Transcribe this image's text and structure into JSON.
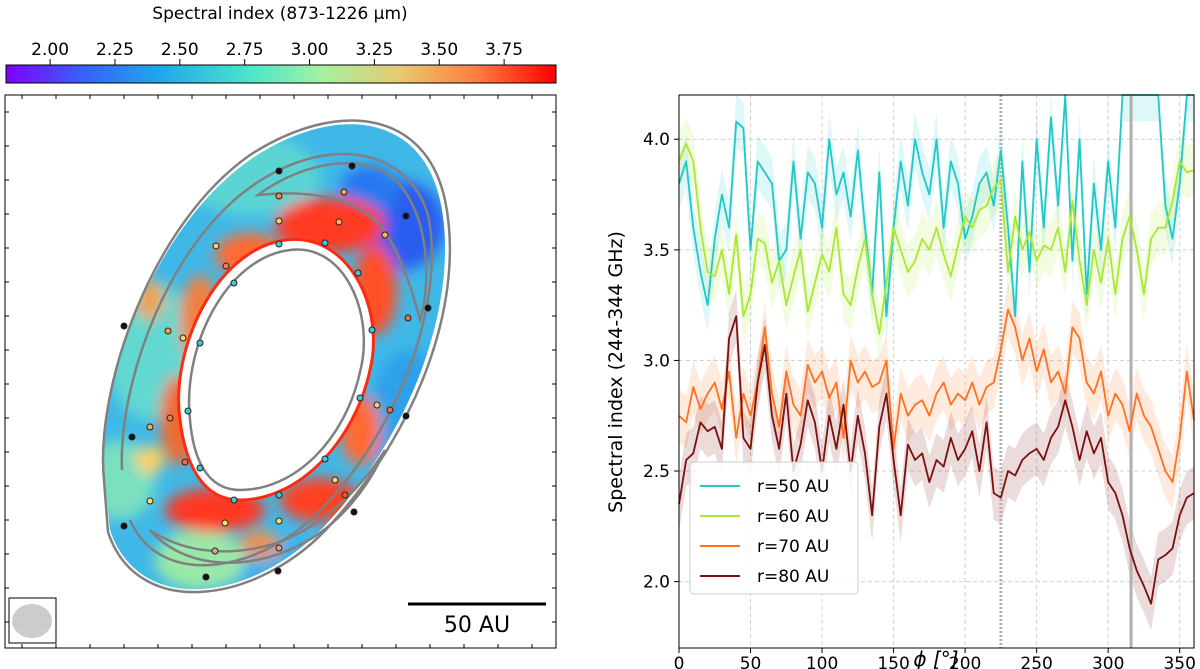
{
  "colorbar": {
    "title": "Spectral index (873-1226 μm)",
    "range": [
      1.83,
      3.95
    ],
    "tick_values": [
      2.0,
      2.25,
      2.5,
      2.75,
      3.0,
      3.25,
      3.5,
      3.75
    ],
    "tick_labels": [
      "2.00",
      "2.25",
      "2.50",
      "2.75",
      "3.00",
      "3.25",
      "3.50",
      "3.75"
    ],
    "colormap": "rainbow"
  },
  "map": {
    "scale_bar_label": "50 AU",
    "contour_color": "#808080",
    "beam_color": "#cccccc"
  },
  "chart_data": {
    "type": "line",
    "xlabel": "ϕ [°]",
    "ylabel": "Spectral index (244-344 GHz)",
    "xlim": [
      0,
      360
    ],
    "ylim": [
      1.7,
      4.2
    ],
    "x_ticks": [
      0,
      50,
      100,
      150,
      200,
      250,
      300,
      350
    ],
    "y_ticks": [
      2.0,
      2.5,
      3.0,
      3.5,
      4.0
    ],
    "y_tick_labels": [
      "2.0",
      "2.5",
      "3.0",
      "3.5",
      "4.0"
    ],
    "grid": true,
    "legend_position": "lower-left",
    "vertical_lines": [
      {
        "x": 225,
        "style": "dotted",
        "color": "#b0b0b0"
      },
      {
        "x": 316,
        "style": "solid",
        "color": "#b0b0b0"
      }
    ],
    "x": [
      0,
      5,
      10,
      15,
      20,
      25,
      30,
      35,
      40,
      45,
      50,
      55,
      60,
      65,
      70,
      75,
      80,
      85,
      90,
      95,
      100,
      105,
      110,
      115,
      120,
      125,
      130,
      135,
      140,
      145,
      150,
      155,
      160,
      165,
      170,
      175,
      180,
      185,
      190,
      195,
      200,
      205,
      210,
      215,
      220,
      225,
      230,
      235,
      240,
      245,
      250,
      255,
      260,
      265,
      270,
      275,
      280,
      285,
      290,
      295,
      300,
      305,
      310,
      315,
      320,
      325,
      330,
      335,
      340,
      345,
      350,
      355,
      360
    ],
    "series": [
      {
        "name": "r=50 AU",
        "color": "#20c8c8",
        "values": [
          3.8,
          3.9,
          3.6,
          3.4,
          3.25,
          3.55,
          3.75,
          3.6,
          4.08,
          4.05,
          3.5,
          3.9,
          3.85,
          3.8,
          3.45,
          3.5,
          3.9,
          3.55,
          3.85,
          3.8,
          3.6,
          4.0,
          3.75,
          3.85,
          3.65,
          3.95,
          3.6,
          3.3,
          3.85,
          3.2,
          3.6,
          3.9,
          3.7,
          4.0,
          3.85,
          3.75,
          4.0,
          3.6,
          3.9,
          3.8,
          3.55,
          3.65,
          3.8,
          3.85,
          3.7,
          3.95,
          3.6,
          3.2,
          3.9,
          3.4,
          4.0,
          3.6,
          4.1,
          3.7,
          4.2,
          3.45,
          4.0,
          3.3,
          3.8,
          3.5,
          3.9,
          3.6,
          4.2,
          4.2,
          4.2,
          4.2,
          4.2,
          4.2,
          3.7,
          3.55,
          3.8,
          4.2,
          4.2
        ]
      },
      {
        "name": "r=60 AU",
        "color": "#a8e830",
        "values": [
          3.9,
          3.98,
          3.9,
          3.6,
          3.4,
          3.38,
          3.5,
          3.3,
          3.57,
          3.2,
          3.3,
          3.55,
          3.53,
          3.35,
          3.45,
          3.25,
          3.38,
          3.5,
          3.22,
          3.35,
          3.48,
          3.4,
          3.6,
          3.3,
          3.25,
          3.42,
          3.55,
          3.3,
          3.12,
          3.35,
          3.6,
          3.5,
          3.4,
          3.45,
          3.55,
          3.5,
          3.6,
          3.48,
          3.38,
          3.52,
          3.65,
          3.6,
          3.68,
          3.7,
          3.78,
          3.82,
          3.4,
          3.65,
          3.5,
          3.58,
          3.45,
          3.52,
          3.5,
          3.6,
          3.4,
          3.72,
          3.45,
          3.25,
          3.5,
          3.35,
          3.55,
          3.3,
          3.55,
          3.65,
          3.5,
          3.3,
          3.55,
          3.6,
          3.6,
          3.72,
          3.9,
          3.85,
          3.86
        ]
      },
      {
        "name": "r=70 AU",
        "color": "#ff7020",
        "values": [
          2.75,
          2.72,
          2.88,
          2.78,
          2.85,
          2.9,
          2.78,
          2.95,
          2.65,
          2.85,
          2.75,
          2.9,
          3.15,
          2.85,
          2.7,
          2.95,
          2.8,
          2.75,
          2.98,
          2.9,
          2.95,
          2.83,
          2.9,
          2.65,
          3.0,
          2.9,
          2.95,
          2.88,
          2.9,
          3.0,
          2.6,
          2.85,
          2.75,
          2.8,
          2.82,
          2.75,
          2.85,
          2.9,
          2.8,
          2.85,
          2.82,
          2.9,
          2.8,
          2.88,
          2.9,
          3.05,
          3.23,
          3.15,
          3.0,
          3.1,
          2.95,
          3.05,
          2.9,
          2.95,
          2.85,
          3.15,
          3.1,
          2.9,
          2.85,
          2.95,
          2.75,
          2.85,
          2.8,
          2.68,
          2.85,
          2.75,
          2.7,
          2.6,
          2.5,
          2.45,
          2.65,
          2.95,
          2.73
        ]
      },
      {
        "name": "r=80 AU",
        "color": "#7a1010",
        "values": [
          2.35,
          2.55,
          2.58,
          2.72,
          2.68,
          2.7,
          2.6,
          3.1,
          3.2,
          2.65,
          2.6,
          2.9,
          3.07,
          2.75,
          2.6,
          2.85,
          2.5,
          2.62,
          2.82,
          2.72,
          2.5,
          2.75,
          2.6,
          2.8,
          2.5,
          2.75,
          2.58,
          2.3,
          2.7,
          2.85,
          2.55,
          2.3,
          2.62,
          2.55,
          2.58,
          2.45,
          2.55,
          2.52,
          2.65,
          2.55,
          2.6,
          2.68,
          2.5,
          2.72,
          2.4,
          2.38,
          2.5,
          2.48,
          2.55,
          2.58,
          2.6,
          2.55,
          2.65,
          2.7,
          2.82,
          2.7,
          2.55,
          2.68,
          2.58,
          2.65,
          2.45,
          2.4,
          2.3,
          2.15,
          2.05,
          1.98,
          1.9,
          2.1,
          2.12,
          2.15,
          2.3,
          2.38,
          2.4
        ]
      }
    ]
  }
}
